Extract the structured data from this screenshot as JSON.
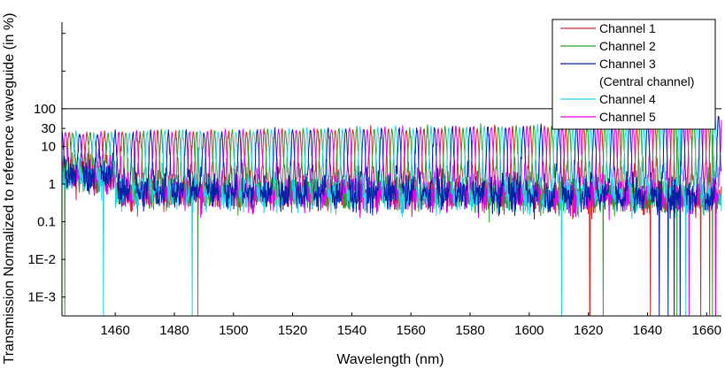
{
  "chart_data": {
    "type": "line",
    "xlabel": "Wavelength (nm)",
    "ylabel": "Transmission Normalized to reference waveguide (in %)",
    "xlim": [
      1442,
      1665
    ],
    "ylim_log10": [
      -3.5,
      4.3
    ],
    "y_scale": "log",
    "grid": false,
    "legend_position": "top-right",
    "x_ticks": [
      1460,
      1480,
      1500,
      1520,
      1540,
      1560,
      1580,
      1600,
      1620,
      1640,
      1660
    ],
    "x_tick_labels": [
      "1460",
      "1480",
      "1500",
      "1520",
      "1540",
      "1560",
      "1580",
      "1600",
      "1620",
      "1640",
      "1660"
    ],
    "y_ticks": [
      0.001,
      0.01,
      0.1,
      1,
      10,
      30,
      100
    ],
    "y_tick_labels": [
      "1E-3",
      "1E-2",
      "0.1",
      "1",
      "10",
      "30",
      "100"
    ],
    "reference_line": {
      "y": 100
    },
    "channel_spacing_nm": 6,
    "series": [
      {
        "name": "Channel 1",
        "color": "#d62728",
        "peak_offset_nm": 2.4,
        "dips_nm": [
          1620.5,
          1641,
          1658,
          1661,
          1663
        ]
      },
      {
        "name": "Channel 2",
        "color": "#2ca02c",
        "peak_offset_nm": 3.6,
        "dips_nm": [
          1443,
          1488,
          1625,
          1650,
          1662
        ]
      },
      {
        "name": "Channel 3",
        "name_line2": "(Central channel)",
        "color": "#0a1fa8",
        "peak_offset_nm": 0.0,
        "dips_nm": [
          1644,
          1647,
          1649,
          1651
        ]
      },
      {
        "name": "Channel 4",
        "color": "#20d6e6",
        "peak_offset_nm": 4.8,
        "dips_nm": [
          1456,
          1486,
          1611,
          1651,
          1653
        ]
      },
      {
        "name": "Channel 5",
        "color": "#e600e6",
        "peak_offset_nm": 1.2,
        "dips_nm": [
          1654,
          1663
        ]
      }
    ]
  }
}
